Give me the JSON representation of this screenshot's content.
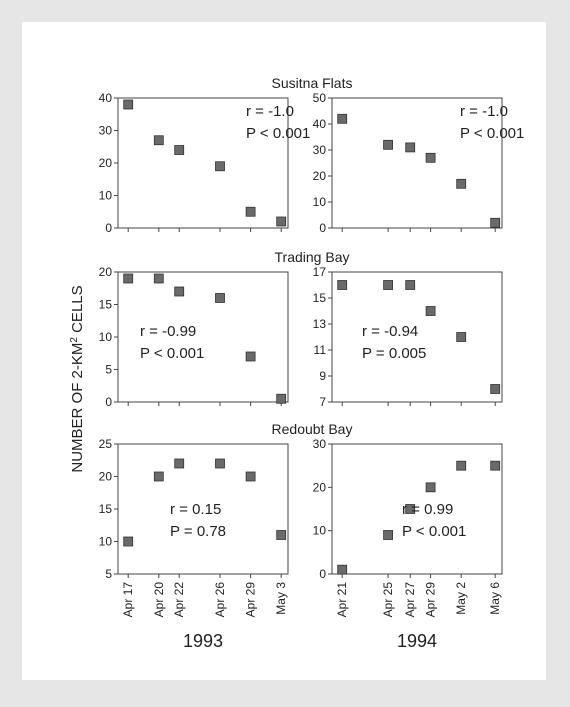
{
  "figure": {
    "ylabel": "NUMBER OF 2-KM² CELLS",
    "ylabel_main": "NUMBER OF 2-KM",
    "ylabel_sup": "2",
    "ylabel_tail": " CELLS",
    "panels": [
      {
        "title": "Susitna Flats"
      },
      {
        "title": "Trading Bay"
      },
      {
        "title": "Redoubt Bay"
      }
    ],
    "years": [
      "1993",
      "1994"
    ]
  },
  "chart_data": [
    {
      "type": "scatter",
      "title": "Susitna Flats",
      "year": "1993",
      "x": [
        "Apr 17",
        "Apr 20",
        "Apr 22",
        "Apr 26",
        "Apr 29",
        "May 3"
      ],
      "y": [
        38,
        27,
        24,
        19,
        5,
        2
      ],
      "ylim": [
        0,
        40
      ],
      "yticks": [
        0,
        10,
        20,
        30,
        40
      ],
      "annotation": [
        "r = -1.0",
        "P < 0.001"
      ]
    },
    {
      "type": "scatter",
      "title": "Susitna Flats",
      "year": "1994",
      "x": [
        "Apr 21",
        "Apr 25",
        "Apr 27",
        "Apr 29",
        "May 2",
        "May 6"
      ],
      "y": [
        42,
        32,
        31,
        27,
        17,
        2
      ],
      "ylim": [
        0,
        50
      ],
      "yticks": [
        0,
        10,
        20,
        30,
        40,
        50
      ],
      "annotation": [
        "r = -1.0",
        "P < 0.001"
      ]
    },
    {
      "type": "scatter",
      "title": "Trading Bay",
      "year": "1993",
      "x": [
        "Apr 17",
        "Apr 20",
        "Apr 22",
        "Apr 26",
        "Apr 29",
        "May 3"
      ],
      "y": [
        19,
        19,
        17,
        16,
        7,
        0.5
      ],
      "ylim": [
        0,
        20
      ],
      "yticks": [
        0,
        5,
        10,
        15,
        20
      ],
      "annotation": [
        "r = -0.99",
        "P < 0.001"
      ]
    },
    {
      "type": "scatter",
      "title": "Trading Bay",
      "year": "1994",
      "x": [
        "Apr 21",
        "Apr 25",
        "Apr 27",
        "Apr 29",
        "May 2",
        "May 6"
      ],
      "y": [
        16,
        16,
        16,
        14,
        12,
        8
      ],
      "ylim": [
        7,
        17
      ],
      "yticks": [
        7,
        9,
        11,
        13,
        15,
        17
      ],
      "annotation": [
        "r = -0.94",
        "P = 0.005"
      ]
    },
    {
      "type": "scatter",
      "title": "Redoubt Bay",
      "year": "1993",
      "x": [
        "Apr 17",
        "Apr 20",
        "Apr 22",
        "Apr 26",
        "Apr 29",
        "May 3"
      ],
      "y": [
        10,
        20,
        22,
        22,
        20,
        11
      ],
      "ylim": [
        5,
        25
      ],
      "yticks": [
        5,
        10,
        15,
        20,
        25
      ],
      "annotation": [
        "r = 0.15",
        "P = 0.78"
      ]
    },
    {
      "type": "scatter",
      "title": "Redoubt Bay",
      "year": "1994",
      "x": [
        "Apr 21",
        "Apr 25",
        "Apr 27",
        "Apr 29",
        "May 2",
        "May 6"
      ],
      "y": [
        1,
        9,
        15,
        20,
        25,
        25
      ],
      "ylim": [
        0,
        30
      ],
      "yticks": [
        0,
        10,
        20,
        30
      ],
      "annotation": [
        "r = 0.99",
        "P < 0.001"
      ]
    }
  ]
}
